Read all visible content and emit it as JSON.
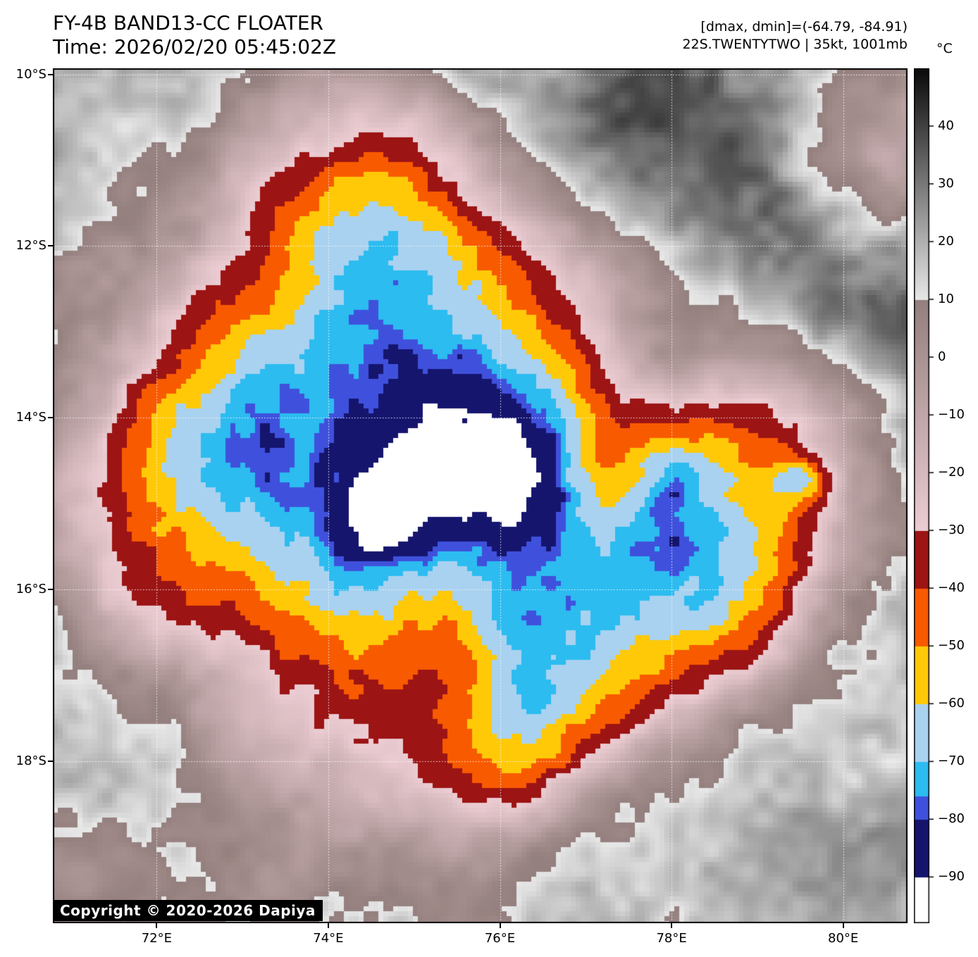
{
  "header": {
    "title": "FY-4B BAND13-CC FLOATER",
    "time_line": "Time: 2026/02/20 05:45:02Z",
    "range_annotation": "[dmax, dmin]=(-64.79, -84.91)",
    "storm_annotation": "22S.TWENTYTWO | 35kt, 1001mb"
  },
  "map": {
    "copyright": "Copyright © 2020-2026 Dapiya",
    "lat_ticks": [
      "10°S",
      "12°S",
      "14°S",
      "16°S",
      "18°S"
    ],
    "lat_values": [
      10,
      12,
      14,
      16,
      18
    ],
    "lon_ticks": [
      "72°E",
      "74°E",
      "76°E",
      "78°E",
      "80°E"
    ],
    "lon_values": [
      72,
      74,
      76,
      78,
      80
    ]
  },
  "colorbar": {
    "unit": "°C",
    "tick_labels": [
      "40",
      "30",
      "20",
      "10",
      "0",
      "−10",
      "−20",
      "−30",
      "−40",
      "−50",
      "−60",
      "−70",
      "−80",
      "−90"
    ],
    "tick_values": [
      40,
      30,
      20,
      10,
      0,
      -10,
      -20,
      -30,
      -40,
      -50,
      -60,
      -70,
      -80,
      -90
    ]
  },
  "palette": {
    "extreme_cold": "#ffffff",
    "navy": "#15156e",
    "royal_blue": "#3f51dc",
    "cyan": "#2cbcf0",
    "light_blue": "#a9d2f0",
    "gold": "#ffc908",
    "orange": "#f85a00",
    "dark_red": "#9c1414",
    "pink": "#eccdd3",
    "mauve": "#94807e",
    "gray_light": "#e8e8e8",
    "gray_dark": "#0a0a0a"
  }
}
